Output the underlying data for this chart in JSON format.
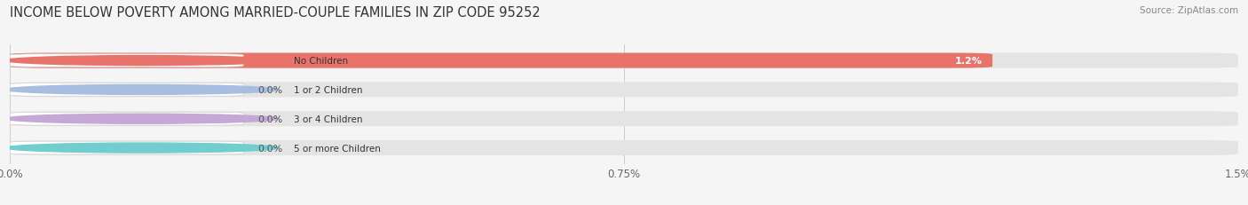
{
  "title": "INCOME BELOW POVERTY AMONG MARRIED-COUPLE FAMILIES IN ZIP CODE 95252",
  "source": "Source: ZipAtlas.com",
  "categories": [
    "No Children",
    "1 or 2 Children",
    "3 or 4 Children",
    "5 or more Children"
  ],
  "values": [
    1.2,
    0.0,
    0.0,
    0.0
  ],
  "bar_colors": [
    "#e8736a",
    "#a8bde0",
    "#c5a8d5",
    "#72cece"
  ],
  "xlim": [
    0,
    1.5
  ],
  "xticks": [
    0.0,
    0.75,
    1.5
  ],
  "xticklabels": [
    "0.0%",
    "0.75%",
    "1.5%"
  ],
  "value_labels": [
    "1.2%",
    "0.0%",
    "0.0%",
    "0.0%"
  ],
  "bg_color": "#f5f5f5",
  "bar_bg_color": "#e4e4e4",
  "title_fontsize": 10.5,
  "bar_height": 0.52
}
